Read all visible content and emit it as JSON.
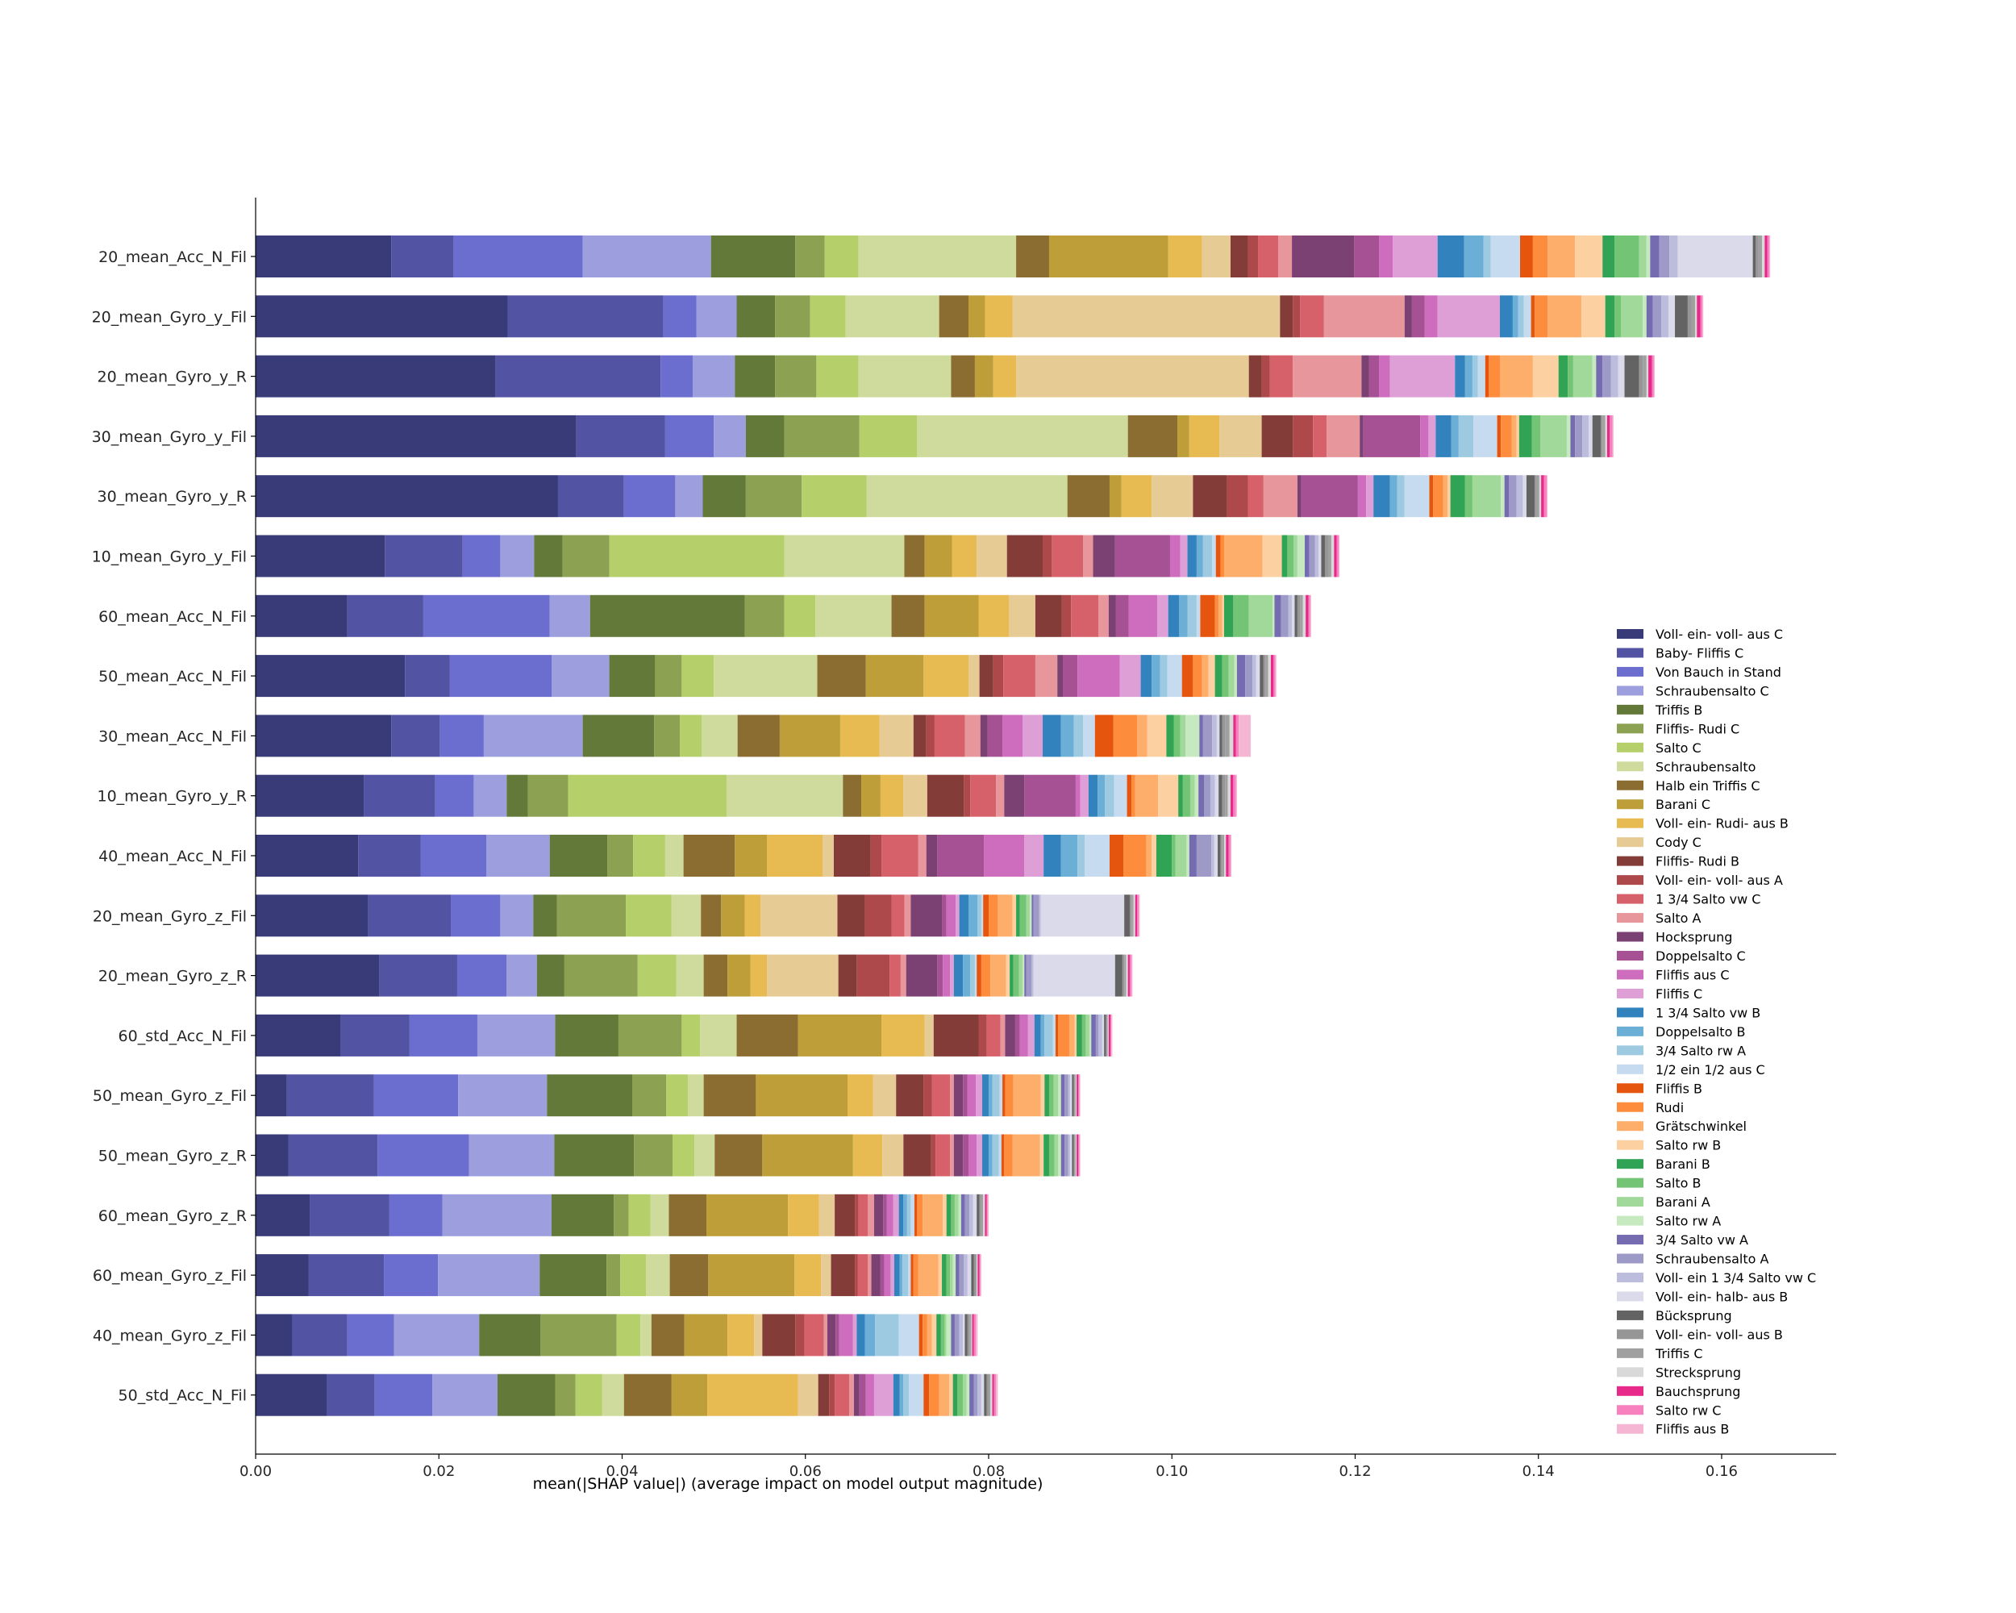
{
  "chart_data": {
    "type": "bar",
    "orientation": "horizontal",
    "stacked": true,
    "title": "",
    "xlabel": "mean(|SHAP value|) (average impact on model output magnitude)",
    "ylabel": "",
    "xlim": [
      0,
      0.1725
    ],
    "xticks": [
      "0.00",
      "0.02",
      "0.04",
      "0.06",
      "0.08",
      "0.10",
      "0.12",
      "0.14",
      "0.16"
    ],
    "xtick_values": [
      0,
      0.02,
      0.04,
      0.06,
      0.08,
      0.1,
      0.12,
      0.14,
      0.16
    ],
    "grid": false,
    "legend_position": "right",
    "categories": [
      "20_mean_Acc_N_Fil",
      "20_mean_Gyro_y_Fil",
      "20_mean_Gyro_y_R",
      "30_mean_Gyro_y_Fil",
      "30_mean_Gyro_y_R",
      "10_mean_Gyro_y_Fil",
      "60_mean_Acc_N_Fil",
      "50_mean_Acc_N_Fil",
      "30_mean_Acc_N_Fil",
      "10_mean_Gyro_y_R",
      "40_mean_Acc_N_Fil",
      "20_mean_Gyro_z_Fil",
      "20_mean_Gyro_z_R",
      "60_std_Acc_N_Fil",
      "50_mean_Gyro_z_Fil",
      "50_mean_Gyro_z_R",
      "60_mean_Gyro_z_R",
      "60_mean_Gyro_z_Fil",
      "40_mean_Gyro_z_Fil",
      "50_std_Acc_N_Fil"
    ],
    "series_names": [
      "Voll- ein- voll- aus C",
      "Baby- Fliffis C",
      "Von Bauch in Stand",
      "Schraubensalto C",
      "Triffis B",
      "Fliffis- Rudi C",
      "Salto C",
      "Schraubensalto",
      "Halb ein Triffis C",
      "Barani C",
      "Voll- ein- Rudi- aus B",
      "Cody C",
      "Fliffis- Rudi B",
      "Voll- ein- voll- aus A",
      "1 3/4 Salto vw C",
      "Salto A",
      "Hocksprung",
      "Doppelsalto C",
      "Fliffis aus C",
      "Fliffis C",
      "1 3/4 Salto vw B",
      "Doppelsalto B",
      "3/4 Salto rw A",
      "1/2 ein 1/2 aus C",
      "Fliffis B",
      "Rudi",
      "Grätschwinkel",
      "Salto rw B",
      "Barani B",
      "Salto B",
      "Barani A",
      "Salto rw A",
      "3/4 Salto vw A",
      "Schraubensalto A",
      "Voll- ein 1 3/4 Salto vw C",
      "Voll- ein- halb- aus B",
      "Bücksprung",
      "Voll- ein- voll- aus B",
      "Triffis C",
      "Strecksprung",
      "Bauchsprung",
      "Salto rw C",
      "Fliffis aus B"
    ],
    "series_colors": [
      "#393b79",
      "#5254a3",
      "#6b6ecf",
      "#9c9ede",
      "#637939",
      "#8ca252",
      "#b5cf6b",
      "#cedb9c",
      "#8c6d31",
      "#bd9e39",
      "#e7ba52",
      "#e7cb94",
      "#843c39",
      "#ad494a",
      "#d6616b",
      "#e7969c",
      "#7b4173",
      "#a55194",
      "#ce6dbd",
      "#de9ed6",
      "#3182bd",
      "#6baed6",
      "#9ecae1",
      "#c6dbef",
      "#e6550d",
      "#fd8d3c",
      "#fdae6b",
      "#fdd0a2",
      "#31a354",
      "#74c476",
      "#a1d99b",
      "#c7e9c0",
      "#756bb1",
      "#9e9ac8",
      "#bcbddc",
      "#dadaeb",
      "#636363",
      "#969696",
      "#a0a0a0",
      "#d9d9d9",
      "#e7298a",
      "#f781bf",
      "#f4b6d2"
    ],
    "values": [
      [
        0.0148,
        0.0068,
        0.0141,
        0.014,
        0.0092,
        0.0032,
        0.0037,
        0.0172,
        0.0036,
        0.013,
        0.0037,
        0.0031,
        0.0019,
        0.0011,
        0.0022,
        0.0015,
        0.0068,
        0.0027,
        0.0015,
        0.0049,
        0.0029,
        0.0021,
        0.0008,
        0.0032,
        0.0014,
        0.0016,
        0.003,
        0.003,
        0.0013,
        0.0027,
        0.0008,
        0.0004,
        0.001,
        0.0011,
        0.0009,
        0.0082,
        0.0003,
        0.0003,
        0.0004,
        0.0003,
        0.0003,
        0.0002,
        0.0001
      ],
      [
        0.0275,
        0.017,
        0.0036,
        0.0044,
        0.0042,
        0.0038,
        0.0039,
        0.0102,
        0.0032,
        0.0018,
        0.003,
        0.0292,
        0.0014,
        0.0008,
        0.0026,
        0.0088,
        0.0008,
        0.0014,
        0.0014,
        0.0068,
        0.0014,
        0.0006,
        0.0006,
        0.0008,
        0.0004,
        0.0014,
        0.0037,
        0.0026,
        0.001,
        0.0007,
        0.0024,
        0.0004,
        0.0007,
        0.0009,
        0.0008,
        0.0007,
        0.0014,
        0.0004,
        0.0004,
        0.0002,
        0.0004,
        0.0002,
        0.0001
      ],
      [
        0.0262,
        0.018,
        0.0035,
        0.0046,
        0.0044,
        0.0045,
        0.0046,
        0.0101,
        0.0026,
        0.002,
        0.0025,
        0.0254,
        0.0014,
        0.0009,
        0.0025,
        0.0075,
        0.0008,
        0.0011,
        0.0012,
        0.0071,
        0.0011,
        0.0008,
        0.0006,
        0.0008,
        0.0004,
        0.0012,
        0.0036,
        0.0028,
        0.001,
        0.0006,
        0.0021,
        0.0004,
        0.0007,
        0.0009,
        0.0008,
        0.0007,
        0.0016,
        0.0004,
        0.0004,
        0.0002,
        0.0004,
        0.0002,
        0.0001
      ],
      [
        0.035,
        0.0097,
        0.0053,
        0.0035,
        0.0042,
        0.0082,
        0.0063,
        0.023,
        0.0054,
        0.0013,
        0.0033,
        0.0046,
        0.0034,
        0.0022,
        0.0015,
        0.0036,
        0.0004,
        0.0062,
        0.0009,
        0.0008,
        0.0017,
        0.0008,
        0.0016,
        0.0026,
        0.0004,
        0.0012,
        0.0005,
        0.0003,
        0.0014,
        0.0009,
        0.0029,
        0.0004,
        0.0005,
        0.0008,
        0.0007,
        0.0004,
        0.0009,
        0.0002,
        0.0003,
        0.0002,
        0.0003,
        0.0003,
        0.0001
      ],
      [
        0.033,
        0.0072,
        0.0056,
        0.003,
        0.0047,
        0.0061,
        0.0071,
        0.0219,
        0.0046,
        0.0013,
        0.0033,
        0.0045,
        0.0037,
        0.0023,
        0.0017,
        0.0037,
        0.0004,
        0.0062,
        0.0009,
        0.0008,
        0.0018,
        0.0008,
        0.0008,
        0.0027,
        0.0004,
        0.0011,
        0.0005,
        0.0003,
        0.0016,
        0.0008,
        0.0031,
        0.0004,
        0.0005,
        0.0008,
        0.0007,
        0.0004,
        0.0009,
        0.0002,
        0.0003,
        0.0002,
        0.0003,
        0.0003,
        0.0001
      ],
      [
        0.0141,
        0.0085,
        0.0041,
        0.0037,
        0.0031,
        0.0051,
        0.0191,
        0.0131,
        0.0022,
        0.003,
        0.0027,
        0.0033,
        0.0039,
        0.001,
        0.0034,
        0.0011,
        0.0024,
        0.006,
        0.0011,
        0.0008,
        0.001,
        0.0007,
        0.001,
        0.0004,
        0.0005,
        0.0004,
        0.0042,
        0.0021,
        0.0006,
        0.0007,
        0.0004,
        0.0008,
        0.0005,
        0.0006,
        0.0004,
        0.0003,
        0.0004,
        0.0004,
        0.0003,
        0.0003,
        0.0003,
        0.0002,
        0.0001
      ],
      [
        0.01,
        0.0083,
        0.0138,
        0.0044,
        0.0169,
        0.0043,
        0.0034,
        0.0083,
        0.0036,
        0.0059,
        0.0033,
        0.0029,
        0.0029,
        0.001,
        0.003,
        0.0011,
        0.0008,
        0.0014,
        0.0031,
        0.0012,
        0.0012,
        0.0009,
        0.001,
        0.0004,
        0.0016,
        0.0004,
        0.0004,
        0.0002,
        0.001,
        0.0017,
        0.0026,
        0.0002,
        0.0007,
        0.0008,
        0.0004,
        0.0003,
        0.0003,
        0.0003,
        0.0003,
        0.0003,
        0.0003,
        0.0002,
        0.0001
      ],
      [
        0.0163,
        0.0049,
        0.0111,
        0.0063,
        0.005,
        0.0029,
        0.0035,
        0.0113,
        0.0053,
        0.0063,
        0.0049,
        0.0012,
        0.0015,
        0.0011,
        0.0035,
        0.0024,
        0.0006,
        0.0016,
        0.0046,
        0.0023,
        0.0012,
        0.0009,
        0.0008,
        0.0016,
        0.0012,
        0.001,
        0.0007,
        0.0007,
        0.0008,
        0.0007,
        0.0006,
        0.0003,
        0.0009,
        0.0008,
        0.0004,
        0.0004,
        0.0004,
        0.0002,
        0.0003,
        0.0003,
        0.0003,
        0.0002,
        0.0001
      ],
      [
        0.0148,
        0.0053,
        0.0048,
        0.0108,
        0.0078,
        0.0028,
        0.0024,
        0.0039,
        0.0046,
        0.0066,
        0.0043,
        0.0037,
        0.0014,
        0.0009,
        0.0033,
        0.0017,
        0.0008,
        0.0016,
        0.0022,
        0.0022,
        0.002,
        0.0014,
        0.001,
        0.0013,
        0.002,
        0.0026,
        0.0011,
        0.0021,
        0.0008,
        0.0007,
        0.0006,
        0.0015,
        0.0004,
        0.001,
        0.0005,
        0.0003,
        0.0003,
        0.0003,
        0.0005,
        0.0004,
        0.0003,
        0.0003,
        0.0013
      ],
      [
        0.0118,
        0.0078,
        0.0042,
        0.0036,
        0.0023,
        0.0044,
        0.0173,
        0.0127,
        0.002,
        0.0021,
        0.0025,
        0.0026,
        0.004,
        0.0007,
        0.0028,
        0.0009,
        0.0022,
        0.0056,
        0.0005,
        0.0009,
        0.001,
        0.0008,
        0.001,
        0.0014,
        0.0005,
        0.0004,
        0.0025,
        0.0022,
        0.0005,
        0.0008,
        0.0005,
        0.0004,
        0.0006,
        0.0007,
        0.0005,
        0.0004,
        0.0004,
        0.0003,
        0.0003,
        0.0003,
        0.0003,
        0.0003,
        0.0001
      ],
      [
        0.0112,
        0.0068,
        0.0072,
        0.0069,
        0.0063,
        0.0028,
        0.0035,
        0.002,
        0.0056,
        0.0035,
        0.0061,
        0.0012,
        0.004,
        0.0012,
        0.004,
        0.0009,
        0.0012,
        0.0051,
        0.0044,
        0.0021,
        0.0019,
        0.0018,
        0.0008,
        0.0027,
        0.0015,
        0.0025,
        0.0006,
        0.0005,
        0.0017,
        0.0004,
        0.0012,
        0.0003,
        0.0008,
        0.0016,
        0.0003,
        0.0004,
        0.0003,
        0.0002,
        0.0002,
        0.0002,
        0.0003,
        0.0002,
        0.0001
      ],
      [
        0.0123,
        0.009,
        0.0054,
        0.0036,
        0.0026,
        0.0075,
        0.005,
        0.0032,
        0.0022,
        0.0026,
        0.0017,
        0.0084,
        0.003,
        0.0029,
        0.0014,
        0.0007,
        0.0034,
        0.0005,
        0.001,
        0.0004,
        0.001,
        0.001,
        0.0004,
        0.0002,
        0.0006,
        0.001,
        0.0016,
        0.0004,
        0.0004,
        0.0007,
        0.0004,
        0.0002,
        0.0002,
        0.0006,
        0.0002,
        0.0091,
        0.0006,
        0.0002,
        0.0002,
        0.0002,
        0.0002,
        0.0002,
        0.0001
      ],
      [
        0.0135,
        0.0085,
        0.0054,
        0.0033,
        0.003,
        0.008,
        0.0042,
        0.003,
        0.0026,
        0.0025,
        0.0018,
        0.0078,
        0.002,
        0.0036,
        0.0012,
        0.0006,
        0.0034,
        0.0006,
        0.0008,
        0.0004,
        0.001,
        0.0008,
        0.0005,
        0.0002,
        0.0005,
        0.001,
        0.0017,
        0.0004,
        0.0004,
        0.0006,
        0.0004,
        0.0002,
        0.0002,
        0.0006,
        0.0002,
        0.0089,
        0.0008,
        0.0002,
        0.0002,
        0.0002,
        0.0002,
        0.0002,
        0.0001
      ],
      [
        0.0093,
        0.0075,
        0.0074,
        0.0085,
        0.0069,
        0.0069,
        0.002,
        0.004,
        0.0067,
        0.0091,
        0.0047,
        0.001,
        0.0049,
        0.0009,
        0.0015,
        0.0005,
        0.0011,
        0.0005,
        0.0009,
        0.0007,
        0.0007,
        0.0004,
        0.0009,
        0.0003,
        0.0003,
        0.0012,
        0.0006,
        0.0002,
        0.0006,
        0.0004,
        0.0004,
        0.0002,
        0.0005,
        0.0003,
        0.0004,
        0.0002,
        0.0002,
        0.0001,
        0.0001,
        0.0001,
        0.0002,
        0.0001,
        0.0001
      ],
      [
        0.0034,
        0.0095,
        0.0092,
        0.0097,
        0.0093,
        0.0037,
        0.0024,
        0.0017,
        0.0057,
        0.01,
        0.0028,
        0.0025,
        0.003,
        0.0009,
        0.002,
        0.0004,
        0.001,
        0.0005,
        0.0009,
        0.0007,
        0.0007,
        0.0004,
        0.0008,
        0.0003,
        0.0003,
        0.0009,
        0.003,
        0.0004,
        0.0005,
        0.0005,
        0.0005,
        0.0003,
        0.0004,
        0.0004,
        0.0002,
        0.0002,
        0.0002,
        0.0001,
        0.0001,
        0.0001,
        0.0002,
        0.0001,
        0.0001
      ],
      [
        0.0036,
        0.0097,
        0.01,
        0.0093,
        0.0087,
        0.0042,
        0.0024,
        0.0022,
        0.0052,
        0.0099,
        0.0032,
        0.0023,
        0.003,
        0.0005,
        0.0016,
        0.0004,
        0.001,
        0.0006,
        0.0009,
        0.0006,
        0.0007,
        0.0004,
        0.0007,
        0.0003,
        0.0003,
        0.0009,
        0.003,
        0.0004,
        0.0006,
        0.0006,
        0.0004,
        0.0003,
        0.0004,
        0.0004,
        0.0002,
        0.0002,
        0.0002,
        0.0001,
        0.0001,
        0.0001,
        0.0002,
        0.0001,
        0.0001
      ],
      [
        0.0059,
        0.0087,
        0.0058,
        0.0119,
        0.0068,
        0.0016,
        0.0024,
        0.002,
        0.0041,
        0.0089,
        0.0034,
        0.0017,
        0.0022,
        0.0004,
        0.001,
        0.0007,
        0.001,
        0.0004,
        0.0007,
        0.0006,
        0.0005,
        0.0004,
        0.0004,
        0.0004,
        0.0003,
        0.0006,
        0.0022,
        0.0004,
        0.0005,
        0.0004,
        0.0004,
        0.0003,
        0.0004,
        0.0005,
        0.0004,
        0.0004,
        0.0003,
        0.0002,
        0.0002,
        0.0002,
        0.0002,
        0.0001,
        0.0001
      ],
      [
        0.0058,
        0.0082,
        0.0059,
        0.0111,
        0.0073,
        0.0015,
        0.0028,
        0.0026,
        0.0042,
        0.0094,
        0.0029,
        0.0011,
        0.0026,
        0.0003,
        0.0011,
        0.0004,
        0.001,
        0.0004,
        0.0007,
        0.0004,
        0.0006,
        0.0003,
        0.0006,
        0.0003,
        0.0003,
        0.0005,
        0.0022,
        0.0004,
        0.0005,
        0.0004,
        0.0003,
        0.0003,
        0.0004,
        0.0005,
        0.0004,
        0.0004,
        0.0003,
        0.0002,
        0.0001,
        0.0001,
        0.0002,
        0.0001,
        0.0001
      ],
      [
        0.004,
        0.006,
        0.0051,
        0.0093,
        0.0067,
        0.0083,
        0.0026,
        0.0012,
        0.0036,
        0.0047,
        0.0029,
        0.0009,
        0.0036,
        0.001,
        0.0021,
        0.0004,
        0.0009,
        0.0004,
        0.0015,
        0.0004,
        0.0009,
        0.0011,
        0.0026,
        0.0022,
        0.0004,
        0.0005,
        0.0005,
        0.0005,
        0.0005,
        0.0004,
        0.0002,
        0.0005,
        0.0004,
        0.0005,
        0.0004,
        0.0002,
        0.0003,
        0.0002,
        0.0002,
        0.0001,
        0.0002,
        0.0002,
        0.0002
      ],
      [
        0.0078,
        0.0052,
        0.0063,
        0.0071,
        0.0063,
        0.0022,
        0.0029,
        0.0024,
        0.0052,
        0.0039,
        0.0099,
        0.0022,
        0.0012,
        0.0006,
        0.0016,
        0.0005,
        0.0006,
        0.0007,
        0.0009,
        0.0021,
        0.0007,
        0.0004,
        0.0006,
        0.0016,
        0.0006,
        0.0011,
        0.0011,
        0.0004,
        0.0005,
        0.0006,
        0.0004,
        0.0003,
        0.0005,
        0.0004,
        0.0004,
        0.0003,
        0.0003,
        0.0002,
        0.0002,
        0.0002,
        0.0002,
        0.0002,
        0.0002
      ]
    ]
  }
}
